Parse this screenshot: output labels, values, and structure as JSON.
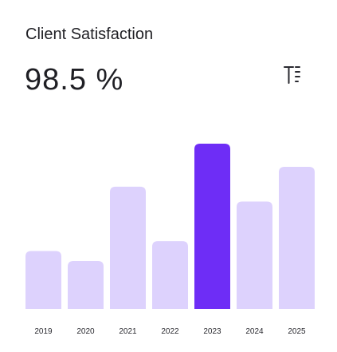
{
  "header": {
    "title": "Client Satisfaction",
    "value": "98.5 %"
  },
  "chart_data": {
    "type": "bar",
    "categories": [
      "2019",
      "2020",
      "2021",
      "2022",
      "2023",
      "2024",
      "2025"
    ],
    "values": [
      35,
      29,
      74,
      41,
      100,
      65,
      86
    ],
    "colors": [
      "#ddd2fd",
      "#ddd2fd",
      "#ddd2fd",
      "#ddd2fd",
      "#6e2df6",
      "#ddd2fd",
      "#ddd2fd"
    ]
  }
}
